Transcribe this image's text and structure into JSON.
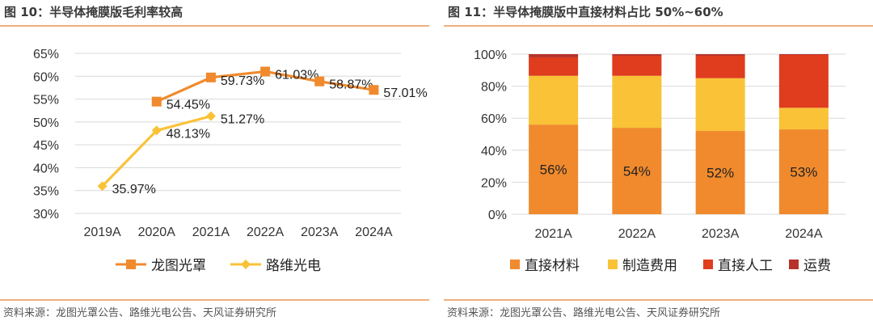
{
  "left": {
    "title": "图 10：半导体掩膜版毛利率较高",
    "source": "资料来源：龙图光罩公告、路维光电公告、天风证券研究所",
    "chart_data": {
      "type": "line",
      "title": "",
      "categories": [
        "2019A",
        "2020A",
        "2021A",
        "2022A",
        "2023A",
        "2024A"
      ],
      "ylim": [
        30,
        65
      ],
      "yticks": [
        30,
        35,
        40,
        45,
        50,
        55,
        60,
        65
      ],
      "ytick_labels": [
        "30%",
        "35%",
        "40%",
        "45%",
        "50%",
        "55%",
        "60%",
        "65%"
      ],
      "grid": true,
      "legend": "bottom",
      "series": [
        {
          "name": "龙图光罩",
          "color": "#f08a2d",
          "marker": "square",
          "values": [
            null,
            54.45,
            59.73,
            61.03,
            58.87,
            57.01
          ],
          "labels": [
            null,
            "54.45%",
            "59.73%",
            "61.03%",
            "58.87%",
            "57.01%"
          ]
        },
        {
          "name": "路维光电",
          "color": "#f9c237",
          "marker": "diamond",
          "values": [
            35.97,
            48.13,
            51.27,
            null,
            null,
            null
          ],
          "labels": [
            "35.97%",
            "48.13%",
            "51.27%",
            null,
            null,
            null
          ]
        }
      ]
    }
  },
  "right": {
    "title": "图 11：半导体掩膜版中直接材料占比 50%~60%",
    "source": "资料来源：龙图光罩公告、路维光电公告、天风证券研究所",
    "chart_data": {
      "type": "bar",
      "stacked": true,
      "title": "",
      "categories": [
        "2021A",
        "2022A",
        "2023A",
        "2024A"
      ],
      "ylim": [
        0,
        100
      ],
      "yticks": [
        0,
        20,
        40,
        60,
        80,
        100
      ],
      "ytick_labels": [
        "0%",
        "20%",
        "40%",
        "60%",
        "80%",
        "100%"
      ],
      "grid": true,
      "legend": "bottom",
      "series": [
        {
          "name": "直接材料",
          "color": "#f08a2d",
          "values": [
            56,
            54,
            52,
            53
          ],
          "labels": [
            "56%",
            "54%",
            "52%",
            "53%"
          ]
        },
        {
          "name": "制造费用",
          "color": "#f9c237",
          "values": [
            30.5,
            32.5,
            33,
            13.5
          ]
        },
        {
          "name": "直接人工",
          "color": "#e03c1e",
          "values": [
            11.5,
            12.5,
            14,
            33
          ]
        },
        {
          "name": "运费",
          "color": "#b5332a",
          "values": [
            2,
            1,
            1,
            0.5
          ]
        }
      ]
    }
  }
}
